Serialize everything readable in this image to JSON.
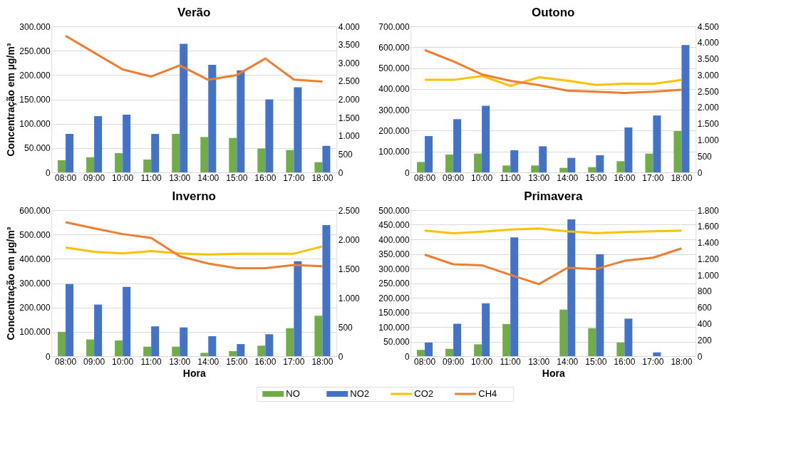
{
  "chart_data": [
    {
      "type": "bar",
      "title": "Verão",
      "ylabel": "Concentração em µg/m³",
      "categories": [
        "08:00",
        "09:00",
        "10:00",
        "11:00",
        "13:00",
        "14:00",
        "15:00",
        "16:00",
        "17:00",
        "18:00"
      ],
      "grid": "y",
      "legend": "bottom",
      "series": [
        {
          "name": "NO",
          "color": "#70ad47",
          "values": [
            25000,
            31000,
            39500,
            26500,
            79000,
            72700,
            70800,
            49000,
            46000,
            21000
          ]
        },
        {
          "name": "NO2",
          "color": "#4472c4",
          "values": [
            79000,
            115500,
            118500,
            79000,
            264000,
            221000,
            209500,
            150000,
            175000,
            54500
          ]
        },
        {
          "name": "CH4",
          "type": "line",
          "axis": "y2",
          "color": "#ed7d31",
          "values": [
            3740,
            3280,
            2820,
            2625,
            2930,
            2535,
            2665,
            3120,
            2540,
            2490
          ]
        }
      ],
      "ylim": [
        0,
        300000
      ],
      "yticks": [
        0,
        {
          "value": 50000,
          "label": "50.000"
        },
        {
          "value": 100000,
          "label": "100.000"
        },
        {
          "value": 150000,
          "label": "150.000"
        },
        {
          "value": 200000,
          "label": "200.000"
        },
        {
          "value": 250000,
          "label": "250.000"
        },
        {
          "value": 300000,
          "label": "300.000"
        }
      ],
      "y2lim": [
        0,
        4000
      ],
      "y2ticks": [
        0,
        500,
        {
          "value": 1000,
          "label": "1.000"
        },
        {
          "value": 1500,
          "label": "1.500"
        },
        {
          "value": 2000,
          "label": "2.000"
        },
        {
          "value": 2500,
          "label": "2.500"
        },
        {
          "value": 3000,
          "label": "3.000"
        },
        {
          "value": 3500,
          "label": "3.500"
        },
        {
          "value": 4000,
          "label": "4.000"
        }
      ]
    },
    {
      "type": "bar",
      "title": "Outono",
      "categories": [
        "08:00",
        "09:00",
        "10:00",
        "11:00",
        "13:00",
        "14:00",
        "15:00",
        "16:00",
        "17:00",
        "18:00"
      ],
      "grid": "y",
      "legend": "bottom",
      "series": [
        {
          "name": "NO",
          "color": "#70ad47",
          "values": [
            50000,
            85500,
            90000,
            33000,
            33000,
            21700,
            25000,
            53600,
            90000,
            198000
          ]
        },
        {
          "name": "NO2",
          "color": "#4472c4",
          "values": [
            174000,
            255000,
            319000,
            106000,
            125000,
            69500,
            82000,
            215500,
            272500,
            610000
          ]
        },
        {
          "name": "CO2",
          "type": "line",
          "color": "#ffc000",
          "values": [
            443500,
            443500,
            462000,
            415000,
            456000,
            440000,
            419500,
            425000,
            424000,
            443500
          ]
        },
        {
          "name": "CH4",
          "type": "line",
          "axis": "y2",
          "color": "#ed7d31",
          "values": [
            3770,
            3420,
            3020,
            2820,
            2690,
            2520,
            2485,
            2450,
            2485,
            2545
          ]
        }
      ],
      "ylim": [
        0,
        700000
      ],
      "yticks": [
        0,
        {
          "value": 100000,
          "label": "100.000"
        },
        {
          "value": 200000,
          "label": "200.000"
        },
        {
          "value": 300000,
          "label": "300.000"
        },
        {
          "value": 400000,
          "label": "400.000"
        },
        {
          "value": 500000,
          "label": "500.000"
        },
        {
          "value": 600000,
          "label": "600.000"
        },
        {
          "value": 700000,
          "label": "700.000"
        }
      ],
      "y2lim": [
        0,
        4500
      ],
      "y2ticks": [
        0,
        500,
        {
          "value": 1000,
          "label": "1.000"
        },
        {
          "value": 1500,
          "label": "1.500"
        },
        {
          "value": 2000,
          "label": "2.000"
        },
        {
          "value": 2500,
          "label": "2.500"
        },
        {
          "value": 3000,
          "label": "3.000"
        },
        {
          "value": 3500,
          "label": "3.500"
        },
        {
          "value": 4000,
          "label": "4.000"
        },
        {
          "value": 4500,
          "label": "4.500"
        }
      ]
    },
    {
      "type": "bar",
      "title": "Inverno",
      "ylabel": "Concentração em µg/m³",
      "xlabel": "Hora",
      "categories": [
        "08:00",
        "09:00",
        "10:00",
        "11:00",
        "13:00",
        "14:00",
        "15:00",
        "16:00",
        "17:00",
        "18:00"
      ],
      "grid": "y",
      "legend": "bottom",
      "series": [
        {
          "name": "NO",
          "color": "#70ad47",
          "values": [
            100000,
            68600,
            64400,
            39000,
            39000,
            13700,
            21000,
            43000,
            115000,
            166000
          ]
        },
        {
          "name": "NO2",
          "color": "#4472c4",
          "values": [
            296000,
            212000,
            285000,
            122500,
            118000,
            82000,
            49600,
            90000,
            390000,
            538500
          ]
        },
        {
          "name": "CO2",
          "type": "line",
          "color": "#ffc000",
          "values": [
            446500,
            428500,
            422000,
            432000,
            422000,
            418000,
            421000,
            421000,
            421000,
            451000
          ]
        },
        {
          "name": "CH4",
          "type": "line",
          "axis": "y2",
          "color": "#ed7d31",
          "values": [
            2293,
            2190,
            2090,
            2025,
            1710,
            1585,
            1505,
            1505,
            1562,
            1540
          ]
        }
      ],
      "ylim": [
        0,
        600000
      ],
      "yticks": [
        0,
        {
          "value": 100000,
          "label": "100.000"
        },
        {
          "value": 200000,
          "label": "200.000"
        },
        {
          "value": 300000,
          "label": "300.000"
        },
        {
          "value": 400000,
          "label": "400.000"
        },
        {
          "value": 500000,
          "label": "500.000"
        },
        {
          "value": 600000,
          "label": "600.000"
        }
      ],
      "y2lim": [
        0,
        2500
      ],
      "y2ticks": [
        0,
        500,
        {
          "value": 1000,
          "label": "1.000"
        },
        {
          "value": 1500,
          "label": "1.500"
        },
        {
          "value": 2000,
          "label": "2.000"
        },
        {
          "value": 2500,
          "label": "2.500"
        }
      ]
    },
    {
      "type": "bar",
      "title": "Primavera",
      "xlabel": "Hora",
      "categories": [
        "08:00",
        "09:00",
        "10:00",
        "11:00",
        "13:00",
        "14:00",
        "15:00",
        "16:00",
        "17:00",
        "18:00"
      ],
      "grid": "y",
      "legend": "bottom",
      "series": [
        {
          "name": "NO",
          "color": "#70ad47",
          "values": [
            21500,
            25000,
            40500,
            110000,
            null,
            159500,
            95700,
            46500,
            null,
            null
          ]
        },
        {
          "name": "NO2",
          "color": "#4472c4",
          "values": [
            46500,
            111000,
            181000,
            407000,
            null,
            468000,
            349000,
            128500,
            13000,
            null
          ]
        },
        {
          "name": "CO2",
          "type": "line",
          "color": "#ffc000",
          "values": [
            430000,
            420500,
            426000,
            433500,
            437000,
            427500,
            421500,
            425000,
            427500,
            430000
          ]
        },
        {
          "name": "CH4",
          "type": "line",
          "axis": "y2",
          "color": "#ed7d31",
          "values": [
            1251,
            1133,
            1120,
            1002,
            888,
            1089,
            1074,
            1176,
            1214,
            1328
          ]
        }
      ],
      "ylim": [
        0,
        500000
      ],
      "yticks": [
        0,
        {
          "value": 50000,
          "label": "50.000"
        },
        {
          "value": 100000,
          "label": "100.000"
        },
        {
          "value": 150000,
          "label": "150.000"
        },
        {
          "value": 200000,
          "label": "200.000"
        },
        {
          "value": 250000,
          "label": "250.000"
        },
        {
          "value": 300000,
          "label": "300.000"
        },
        {
          "value": 350000,
          "label": "350.000"
        },
        {
          "value": 400000,
          "label": "400.000"
        },
        {
          "value": 450000,
          "label": "450.000"
        },
        {
          "value": 500000,
          "label": "500.000"
        }
      ],
      "y2lim": [
        0,
        1800
      ],
      "y2ticks": [
        0,
        200,
        400,
        600,
        800,
        {
          "value": 1000,
          "label": "1.000"
        },
        {
          "value": 1200,
          "label": "1.200"
        },
        {
          "value": 1400,
          "label": "1.400"
        },
        {
          "value": 1600,
          "label": "1.600"
        },
        {
          "value": 1800,
          "label": "1.800"
        }
      ]
    }
  ]
}
